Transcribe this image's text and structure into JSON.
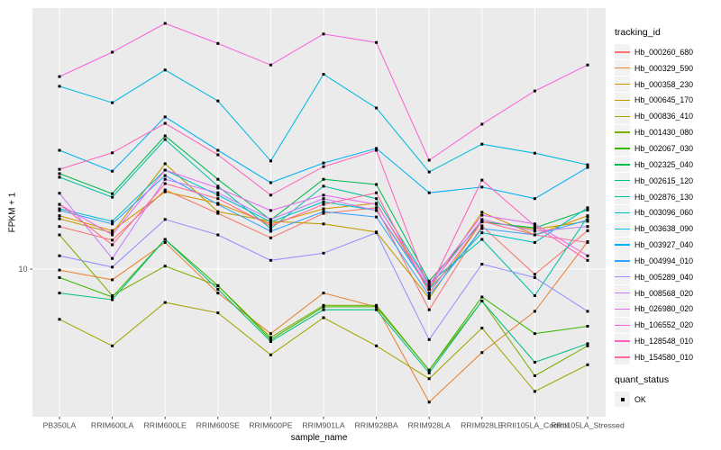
{
  "chart_data": {
    "type": "line",
    "title": "",
    "xlabel": "sample_name",
    "ylabel": "FPKM + 1",
    "y_scale": "log10",
    "ylim": [
      2.4,
      135
    ],
    "y_ticks": [
      {
        "label": "10",
        "value": 10
      }
    ],
    "grid": "major-on",
    "panel_bg": "#EBEBEB",
    "gridline_color": "#FFFFFF",
    "tick_text_color": "#4D4D4D",
    "marker": "black-square",
    "legend_title": "tracking_id",
    "legend_position": "right",
    "categories": [
      "PB350LA",
      "RRIM600LA",
      "RRIM600LE",
      "RRIM600SE",
      "RRIM600PE",
      "RRIM901LA",
      "RRIM928BA",
      "RRIM928LA",
      "RRIM928LE",
      "RRII105LA_Control",
      "RRII105LA_Stressed"
    ],
    "series": [
      {
        "name": "Hb_000260_680",
        "color": "#F8766D",
        "values": [
          15.2,
          13.3,
          21.8,
          17.3,
          13.6,
          17.3,
          18.3,
          6.7,
          15.3,
          9.5,
          14.6
        ]
      },
      {
        "name": "Hb_000329_590",
        "color": "#EA8331",
        "values": [
          9.9,
          9.0,
          13.0,
          7.9,
          5.3,
          7.9,
          6.9,
          2.7,
          4.4,
          6.6,
          13.1
        ]
      },
      {
        "name": "Hb_000358_230",
        "color": "#D89000",
        "values": [
          16.9,
          14.6,
          21.4,
          19.1,
          15.6,
          18.1,
          19.1,
          8.2,
          17.5,
          14.0,
          16.9
        ]
      },
      {
        "name": "Hb_000645_170",
        "color": "#C09B00",
        "values": [
          16.4,
          14.3,
          28.2,
          17.6,
          16.0,
          15.6,
          14.4,
          7.5,
          16.0,
          14.8,
          16.0
        ]
      },
      {
        "name": "Hb_000836_410",
        "color": "#A3A500",
        "values": [
          6.1,
          4.7,
          7.2,
          6.5,
          4.3,
          6.2,
          4.7,
          3.4,
          5.6,
          3.0,
          3.9
        ]
      },
      {
        "name": "Hb_001430_080",
        "color": "#7CAE00",
        "values": [
          14.0,
          7.7,
          10.3,
          8.5,
          5.1,
          7.0,
          7.0,
          3.7,
          7.3,
          3.5,
          4.7
        ]
      },
      {
        "name": "Hb_002067_030",
        "color": "#39B600",
        "values": [
          9.2,
          7.6,
          13.4,
          8.5,
          5.0,
          6.9,
          6.9,
          3.7,
          7.6,
          5.3,
          5.7
        ]
      },
      {
        "name": "Hb_002325_040",
        "color": "#00BB4E",
        "values": [
          25.6,
          21.0,
          37.1,
          24.2,
          16.2,
          24.2,
          23.0,
          8.9,
          15.9,
          15.0,
          17.9
        ]
      },
      {
        "name": "Hb_002615_120",
        "color": "#00BF7D",
        "values": [
          7.9,
          7.4,
          13.4,
          8.2,
          4.9,
          6.7,
          6.7,
          3.6,
          7.3,
          4.0,
          4.8
        ]
      },
      {
        "name": "Hb_002876_130",
        "color": "#00C1A3",
        "values": [
          24.7,
          20.3,
          35.8,
          22.6,
          14.9,
          22.6,
          20.0,
          8.7,
          13.4,
          7.7,
          16.7
        ]
      },
      {
        "name": "Hb_003096_060",
        "color": "#00BFC4",
        "values": [
          18.1,
          16.0,
          26.5,
          20.7,
          15.9,
          19.4,
          17.8,
          8.2,
          14.3,
          13.0,
          18.3
        ]
      },
      {
        "name": "Hb_003638_090",
        "color": "#00BAE0",
        "values": [
          60.4,
          51.4,
          70.9,
          52.3,
          29.0,
          68.0,
          48.8,
          26.0,
          34.2,
          31.3,
          27.9
        ]
      },
      {
        "name": "Hb_003927_040",
        "color": "#00B0F6",
        "values": [
          32.2,
          26.2,
          44.7,
          32.2,
          23.4,
          28.4,
          32.8,
          21.2,
          22.4,
          20.0,
          27.2
        ]
      },
      {
        "name": "Hb_004994_010",
        "color": "#35A2FF",
        "values": [
          17.8,
          15.6,
          25.1,
          18.9,
          14.5,
          17.6,
          16.7,
          7.7,
          14.9,
          14.0,
          16.2
        ]
      },
      {
        "name": "Hb_005289_040",
        "color": "#9590FF",
        "values": [
          11.4,
          10.2,
          16.3,
          14.0,
          10.9,
          11.7,
          14.3,
          5.0,
          10.5,
          9.2,
          6.6
        ]
      },
      {
        "name": "Hb_008568_020",
        "color": "#C77CFF",
        "values": [
          21.1,
          11.1,
          24.2,
          21.2,
          16.3,
          20.0,
          17.8,
          8.4,
          16.3,
          14.5,
          15.2
        ]
      },
      {
        "name": "Hb_026980_020",
        "color": "#E76BF3",
        "values": [
          18.9,
          14.0,
          26.5,
          22.2,
          17.8,
          20.7,
          18.9,
          8.6,
          17.0,
          15.6,
          11.4
        ]
      },
      {
        "name": "Hb_106552_020",
        "color": "#FA62DB",
        "values": [
          66.5,
          84.5,
          112.2,
          92.1,
          74.5,
          101.1,
          93.0,
          29.2,
          41.6,
          57.7,
          74.5
        ]
      },
      {
        "name": "Hb_128548_010",
        "color": "#FF62BC",
        "values": [
          26.7,
          31.4,
          42.0,
          30.8,
          20.7,
          27.4,
          32.2,
          8.2,
          24.0,
          15.3,
          10.9
        ]
      },
      {
        "name": "Hb_154580_010",
        "color": "#FF6A98",
        "values": [
          18.9,
          12.7,
          23.2,
          20.0,
          15.3,
          18.9,
          21.2,
          7.9,
          16.0,
          14.0,
          13.0
        ]
      }
    ],
    "quant_legend": {
      "title": "quant_status",
      "items": [
        {
          "label": "OK",
          "marker": "black-square"
        }
      ]
    }
  }
}
